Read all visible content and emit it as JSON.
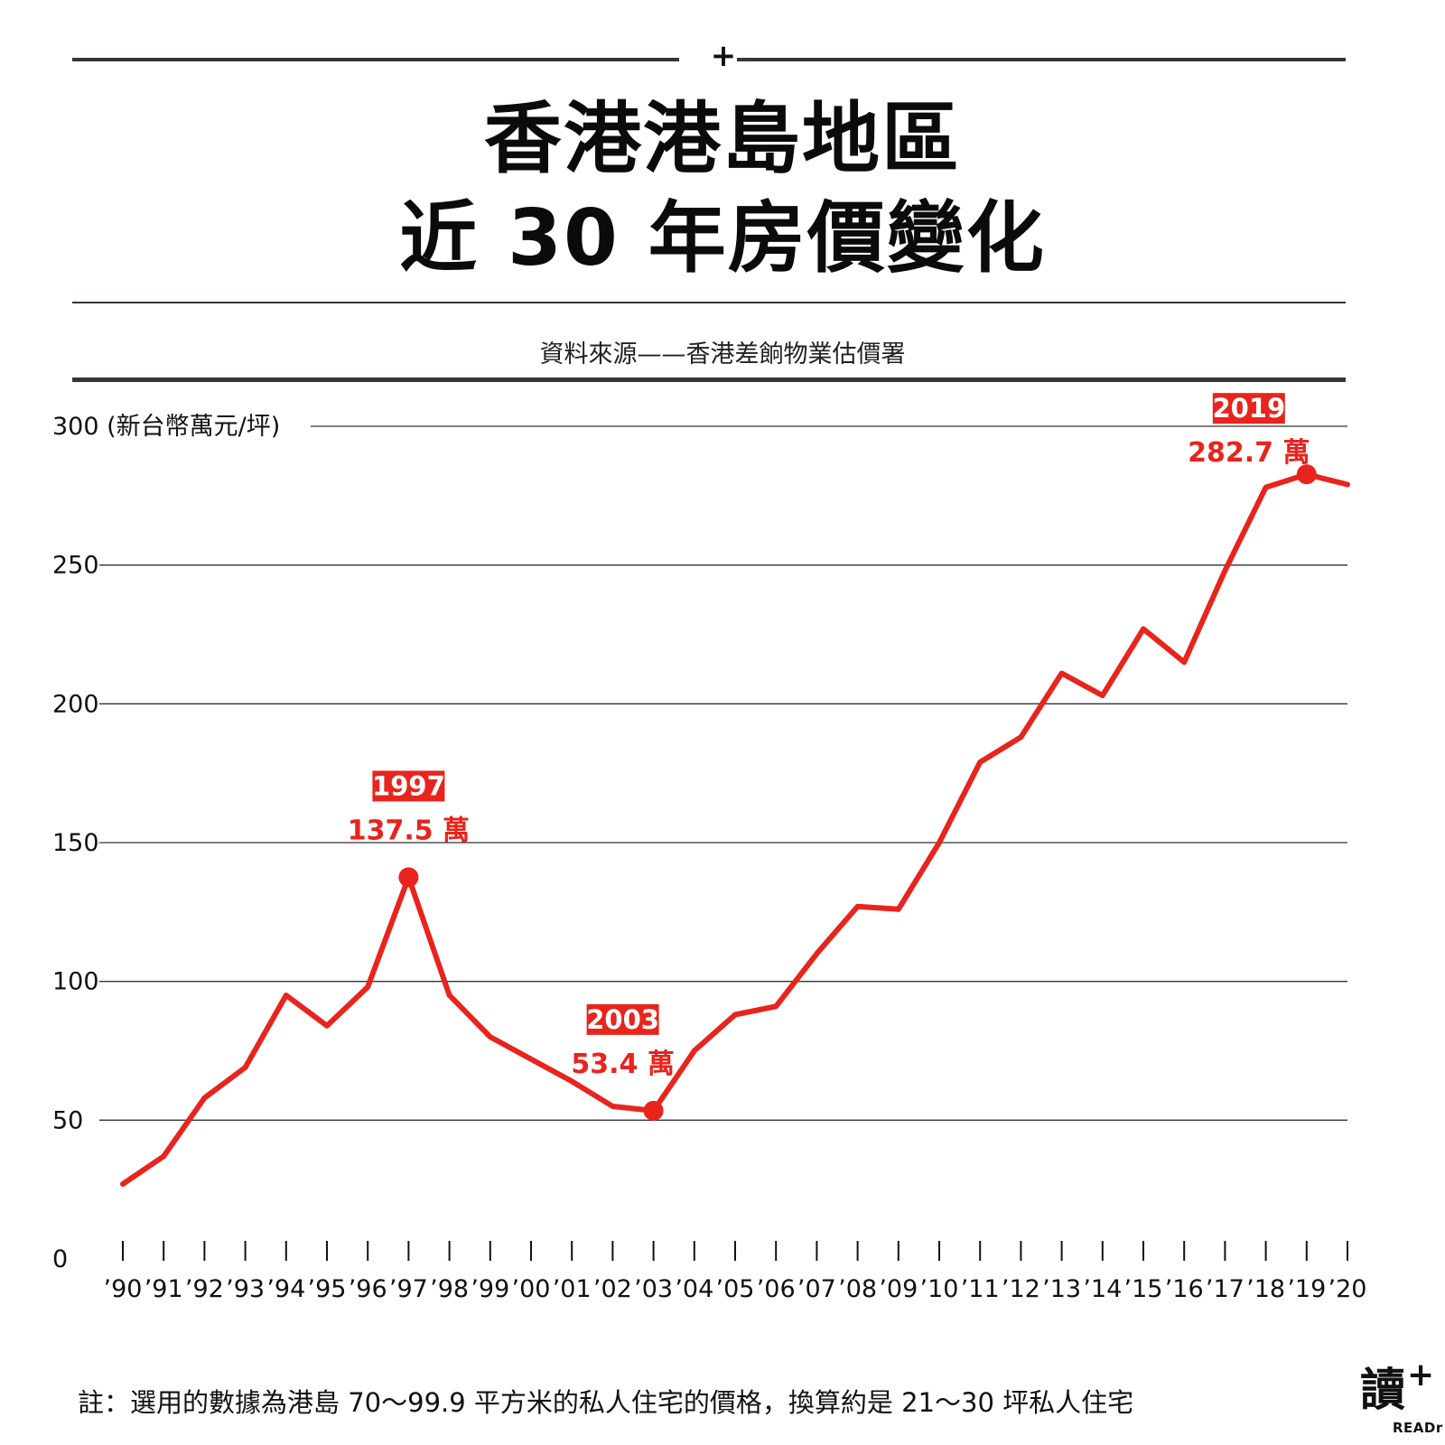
{
  "header": {
    "plus_symbol": "+",
    "title_line1": "香港港島地區",
    "title_line2": "近 30 年房價變化",
    "source": "資料來源——香港差餉物業估價署"
  },
  "footer": {
    "note": "註：選用的數據為港島 70～99.9 平方米的私人住宅的價格，換算約是 21～30 坪私人住宅",
    "logo_glyph": "讀",
    "logo_plus": "+",
    "logo_text": "READr"
  },
  "colors": {
    "line": "#e8241d",
    "grid": "#333333",
    "rules": "#3a3333"
  },
  "chart_data": {
    "type": "line",
    "title": "香港港島地區 近 30 年房價變化",
    "unit_label": "(新台幣萬元/坪)",
    "ylim": [
      0,
      300
    ],
    "yticks": [
      0,
      50,
      100,
      150,
      200,
      250,
      300
    ],
    "ytick_labels": [
      "0",
      "50",
      "100",
      "150",
      "200",
      "250",
      "300"
    ],
    "categories": [
      "’90",
      "’91",
      "’92",
      "’93",
      "’94",
      "’95",
      "’96",
      "’97",
      "’98",
      "’99",
      "’00",
      "’01",
      "’02",
      "’03",
      "’04",
      "’05",
      "’06",
      "’07",
      "’08",
      "’09",
      "’10",
      "’11",
      "’12",
      "’13",
      "’14",
      "’15",
      "’16",
      "’17",
      "’18",
      "’19",
      "’20"
    ],
    "series": [
      {
        "values": [
          27,
          37,
          58,
          69,
          95,
          84,
          98,
          137.5,
          95,
          80,
          72,
          64,
          55,
          53.4,
          75,
          88,
          91,
          110,
          127,
          126,
          150,
          179,
          188,
          211,
          203,
          227,
          215,
          248,
          278,
          282.7,
          279
        ]
      }
    ],
    "grid": true,
    "annotations": [
      {
        "index": 7,
        "year": "1997",
        "label": "137.5 萬"
      },
      {
        "index": 13,
        "year": "2003",
        "label": "53.4 萬"
      },
      {
        "index": 29,
        "year": "2019",
        "label": "282.7 萬"
      }
    ]
  }
}
